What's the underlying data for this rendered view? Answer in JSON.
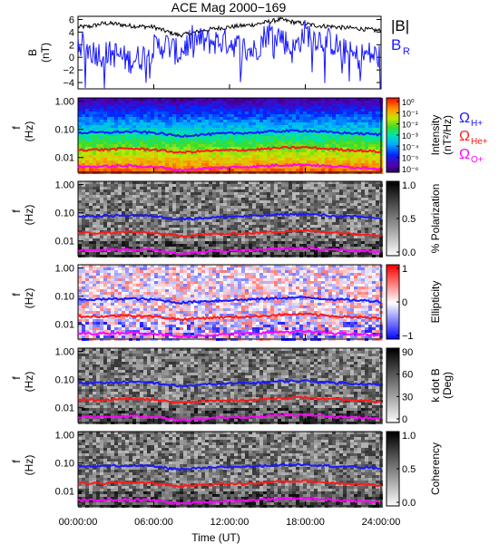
{
  "title": "ACE Mag 2000−169",
  "x_axis": {
    "label": "Time (UT)",
    "ticks": [
      "00:00:00",
      "06:00:00",
      "12:00:00",
      "18:00:00",
      "24:00:00"
    ],
    "range_hours": [
      0,
      24
    ]
  },
  "legend_top": [
    {
      "name": "|B|",
      "color": "#000000"
    },
    {
      "name": "B",
      "sub": "R",
      "color": "#1a1aff"
    }
  ],
  "legend_gyro": [
    {
      "name": "Ω",
      "sub": "H+",
      "color": "#1a1aff"
    },
    {
      "name": "Ω",
      "sub": "He+",
      "color": "#ff1a1a"
    },
    {
      "name": "Ω",
      "sub": "O+",
      "color": "#ff00ff"
    }
  ],
  "chart_data": [
    {
      "type": "line",
      "panel": "field",
      "ylabel": [
        "B",
        "(nT)"
      ],
      "ylim": [
        -5,
        6.5
      ],
      "yticks": [
        "6",
        "4",
        "2",
        "0",
        "−2",
        "−4"
      ],
      "x_hours": [
        0,
        1,
        2,
        3,
        4,
        5,
        6,
        7,
        8,
        9,
        10,
        11,
        12,
        13,
        14,
        15,
        16,
        17,
        18,
        19,
        20,
        21,
        22,
        23,
        24
      ],
      "series": [
        {
          "name": "|B|",
          "color": "#000000",
          "values": [
            4.8,
            4.9,
            5.4,
            5.3,
            5.0,
            4.9,
            4.8,
            4.1,
            3.5,
            3.8,
            4.3,
            4.6,
            4.8,
            5.0,
            5.2,
            5.6,
            6.0,
            5.6,
            5.3,
            5.0,
            4.9,
            4.7,
            4.6,
            4.4,
            4.2
          ]
        },
        {
          "name": "BR",
          "color": "#1a1aff",
          "values": [
            2.5,
            1.0,
            0.5,
            0.5,
            -0.5,
            0.0,
            1.5,
            2.0,
            0.5,
            3.0,
            2.5,
            2.5,
            2.5,
            1.5,
            1.0,
            4.0,
            3.5,
            1.0,
            4.0,
            3.0,
            2.5,
            1.0,
            0.0,
            0.5,
            0.0
          ]
        }
      ]
    },
    {
      "type": "heatmap",
      "panel": "intensity",
      "ylabel": [
        "f",
        "(Hz)"
      ],
      "yticks": [
        "1.00",
        "0.10",
        "0.01"
      ],
      "ylim_hz": [
        0.003,
        1.3
      ],
      "colorbar_label": [
        "Intensity",
        "(nT²/Hz)"
      ],
      "colorbar_ticks": [
        "10⁰",
        "10⁻¹",
        "10⁻²",
        "10⁻³",
        "10⁻⁴",
        "10⁻⁵",
        "10⁻⁶"
      ]
    },
    {
      "type": "heatmap",
      "panel": "polarization",
      "ylabel": [
        "f",
        "(Hz)"
      ],
      "yticks": [
        "1.00",
        "0.10",
        "0.01"
      ],
      "colorbar_label": [
        "% Polarization"
      ],
      "colorbar_ticks": [
        "1.0",
        "0.5",
        "0.0"
      ]
    },
    {
      "type": "heatmap",
      "panel": "ellipticity",
      "ylabel": [
        "f",
        "(Hz)"
      ],
      "yticks": [
        "1.00",
        "0.10",
        "0.01"
      ],
      "colorbar_label": [
        "Ellipticity"
      ],
      "colorbar_ticks": [
        "1",
        "0",
        "−1"
      ]
    },
    {
      "type": "heatmap",
      "panel": "kdotb",
      "ylabel": [
        "f",
        "(Hz)"
      ],
      "yticks": [
        "1.00",
        "0.10",
        "0.01"
      ],
      "colorbar_label": [
        "k dot B",
        "(Deg)"
      ],
      "colorbar_ticks": [
        "90",
        "60",
        "30",
        "0"
      ]
    },
    {
      "type": "heatmap",
      "panel": "coherency",
      "ylabel": [
        "f",
        "(Hz)"
      ],
      "yticks": [
        "1.00",
        "0.10",
        "0.01"
      ],
      "colorbar_label": [
        "Coherency"
      ],
      "colorbar_ticks": [
        "1.0",
        "0.5",
        "0.0"
      ]
    }
  ],
  "gyro_lines": {
    "x_hours": [
      0,
      2,
      4,
      6,
      8,
      10,
      12,
      14,
      16,
      18,
      20,
      22,
      24
    ],
    "H+": {
      "color": "#1a1aff",
      "hz": [
        0.075,
        0.077,
        0.082,
        0.076,
        0.058,
        0.066,
        0.072,
        0.077,
        0.086,
        0.09,
        0.078,
        0.072,
        0.065
      ]
    },
    "He+": {
      "color": "#ff1a1a",
      "hz": [
        0.019,
        0.019,
        0.021,
        0.019,
        0.015,
        0.017,
        0.018,
        0.019,
        0.022,
        0.023,
        0.02,
        0.018,
        0.016
      ]
    },
    "O+": {
      "color": "#ff00ff",
      "hz": [
        0.0047,
        0.0048,
        0.0051,
        0.0047,
        0.0036,
        0.0041,
        0.0045,
        0.0048,
        0.0054,
        0.0056,
        0.0049,
        0.0045,
        0.0041
      ]
    }
  }
}
